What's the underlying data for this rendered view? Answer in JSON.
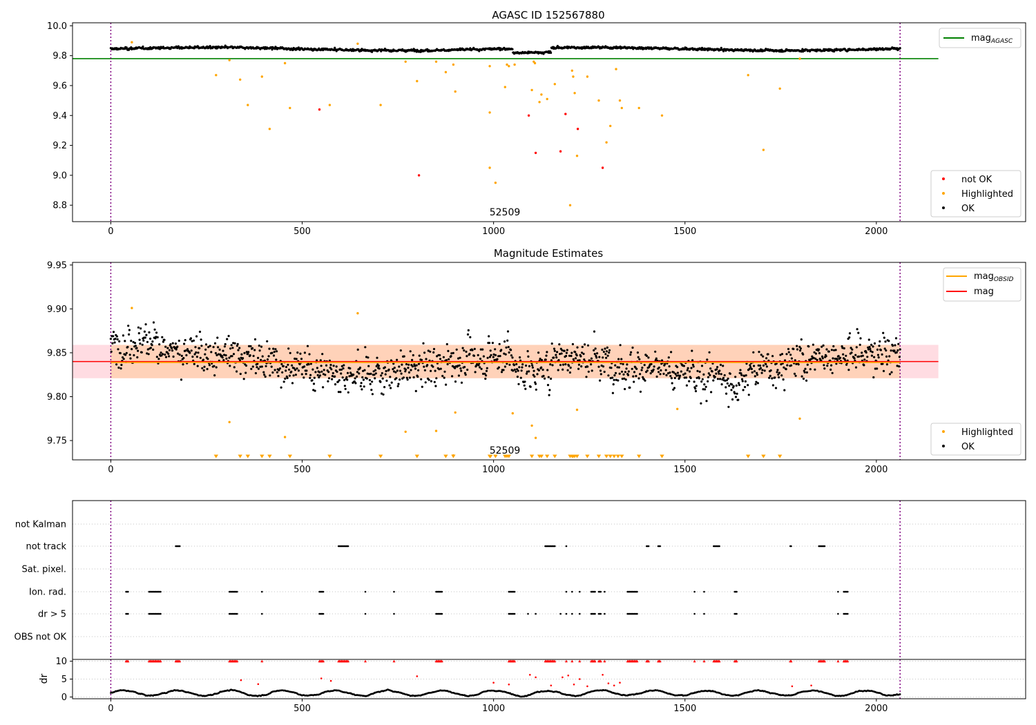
{
  "chart_data": [
    {
      "type": "scatter",
      "title": "AGASC ID 152567880",
      "xlabel": "",
      "ylabel": "",
      "xlim": [
        -100,
        2390
      ],
      "ylim": [
        8.69,
        10.02
      ],
      "xticks": [
        "0",
        "500",
        "1000",
        "1500",
        "2000"
      ],
      "yticks": [
        "8.8",
        "9.0",
        "9.2",
        "9.4",
        "9.6",
        "9.8",
        "10.0"
      ],
      "xtick_values": [
        0,
        500,
        1000,
        1500,
        2000
      ],
      "ytick_values": [
        8.8,
        9.0,
        9.2,
        9.4,
        9.6,
        9.8,
        10.0
      ],
      "vlines": [
        0,
        2062
      ],
      "vline_color": "#800080",
      "annotation": {
        "text": "52509",
        "x": 1030,
        "y": 8.74
      },
      "hline": {
        "name": "mag<sub>AGASC</sub>",
        "label_base": "mag",
        "label_sub": "AGASC",
        "y": 9.78,
        "color": "#008000",
        "x_range": [
          -100,
          2162
        ]
      },
      "legend_line": {
        "base": "mag",
        "sub": "AGASC",
        "position": "upper right"
      },
      "legend_markers": {
        "position": "lower right",
        "entries": [
          {
            "name": "not OK",
            "color": "#ff0000"
          },
          {
            "name": "Highlighted",
            "color": "#ffa500"
          },
          {
            "name": "OK",
            "color": "#000000"
          }
        ]
      },
      "ok_band": {
        "x_range": [
          0,
          2062
        ],
        "center": 9.845,
        "amplitude": 0.018,
        "color": "#000000"
      },
      "series": [
        {
          "name": "Highlighted",
          "color": "#ffa500",
          "points": [
            [
              55,
              9.89
            ],
            [
              275,
              9.67
            ],
            [
              310,
              9.77
            ],
            [
              338,
              9.64
            ],
            [
              358,
              9.47
            ],
            [
              395,
              9.66
            ],
            [
              415,
              9.31
            ],
            [
              455,
              9.75
            ],
            [
              468,
              9.45
            ],
            [
              572,
              9.47
            ],
            [
              645,
              9.88
            ],
            [
              705,
              9.47
            ],
            [
              770,
              9.76
            ],
            [
              800,
              9.63
            ],
            [
              850,
              9.76
            ],
            [
              875,
              9.69
            ],
            [
              895,
              9.74
            ],
            [
              900,
              9.56
            ],
            [
              990,
              9.73
            ],
            [
              990,
              9.42
            ],
            [
              990,
              9.05
            ],
            [
              1005,
              8.95
            ],
            [
              1030,
              9.59
            ],
            [
              1035,
              9.74
            ],
            [
              1040,
              9.73
            ],
            [
              1055,
              9.74
            ],
            [
              1100,
              9.57
            ],
            [
              1105,
              9.76
            ],
            [
              1108,
              9.75
            ],
            [
              1120,
              9.49
            ],
            [
              1125,
              9.54
            ],
            [
              1140,
              9.51
            ],
            [
              1160,
              9.61
            ],
            [
              1200,
              8.8
            ],
            [
              1205,
              9.7
            ],
            [
              1208,
              9.66
            ],
            [
              1212,
              9.55
            ],
            [
              1218,
              9.13
            ],
            [
              1245,
              9.66
            ],
            [
              1275,
              9.5
            ],
            [
              1295,
              9.22
            ],
            [
              1305,
              9.33
            ],
            [
              1320,
              9.71
            ],
            [
              1330,
              9.5
            ],
            [
              1335,
              9.45
            ],
            [
              1380,
              9.45
            ],
            [
              1440,
              9.4
            ],
            [
              1665,
              9.67
            ],
            [
              1705,
              9.17
            ],
            [
              1748,
              9.58
            ],
            [
              1800,
              9.78
            ]
          ]
        },
        {
          "name": "not OK",
          "color": "#ff0000",
          "points": [
            [
              545,
              9.44
            ],
            [
              805,
              9.0
            ],
            [
              1092,
              9.4
            ],
            [
              1110,
              9.15
            ],
            [
              1175,
              9.16
            ],
            [
              1188,
              9.41
            ],
            [
              1220,
              9.31
            ],
            [
              1285,
              9.05
            ]
          ]
        }
      ]
    },
    {
      "type": "scatter",
      "title": "Magnitude Estimates",
      "xlabel": "",
      "ylabel": "",
      "xlim": [
        -100,
        2390
      ],
      "ylim": [
        9.728,
        9.953
      ],
      "xticks": [
        "0",
        "500",
        "1000",
        "1500",
        "2000"
      ],
      "yticks": [
        "9.75",
        "9.80",
        "9.85",
        "9.90",
        "9.95"
      ],
      "xtick_values": [
        0,
        500,
        1000,
        1500,
        2000
      ],
      "ytick_values": [
        9.75,
        9.8,
        9.85,
        9.9,
        9.95
      ],
      "vlines": [
        0,
        2062
      ],
      "annotation": {
        "text": "52509",
        "x": 1030,
        "y": 9.735
      },
      "mag_line": {
        "name": "mag",
        "y": 9.84,
        "color": "#ff0000",
        "band": [
          9.821,
          9.859
        ],
        "band_color": "#ffc0cb",
        "x_range": [
          -100,
          2162
        ]
      },
      "obsid_line": {
        "name": "mag<sub>OBSID</sub>",
        "label_base": "mag",
        "label_sub": "OBSID",
        "y": 9.839,
        "color": "#ffa500",
        "band": [
          9.821,
          9.859
        ],
        "x_range": [
          0,
          2062
        ]
      },
      "legend_lines": {
        "position": "upper right",
        "entries": [
          {
            "base": "mag",
            "sub": "OBSID",
            "color": "#ffa500"
          },
          {
            "base": "mag",
            "sub": "",
            "color": "#ff0000"
          }
        ]
      },
      "legend_markers": {
        "position": "lower right",
        "entries": [
          {
            "name": "Highlighted",
            "color": "#ffa500"
          },
          {
            "name": "OK",
            "color": "#000000"
          }
        ]
      },
      "ok_band": {
        "x_range": [
          0,
          2062
        ],
        "center": 9.838,
        "amplitude": 0.05,
        "color": "#000000"
      },
      "highlighted_points": [
        [
          55,
          9.901
        ],
        [
          310,
          9.771
        ],
        [
          455,
          9.754
        ],
        [
          645,
          9.895
        ],
        [
          770,
          9.76
        ],
        [
          850,
          9.761
        ],
        [
          900,
          9.782
        ],
        [
          1050,
          9.781
        ],
        [
          1100,
          9.767
        ],
        [
          1110,
          9.753
        ],
        [
          1218,
          9.785
        ],
        [
          1480,
          9.786
        ],
        [
          1800,
          9.775
        ],
        [
          895,
          9.733
        ]
      ],
      "below_range_markers": [
        275,
        338,
        358,
        395,
        415,
        468,
        572,
        705,
        800,
        875,
        895,
        990,
        992,
        1005,
        1030,
        1035,
        1040,
        1100,
        1120,
        1125,
        1140,
        1160,
        1200,
        1205,
        1208,
        1212,
        1218,
        1245,
        1275,
        1295,
        1305,
        1315,
        1325,
        1335,
        1380,
        1440,
        1665,
        1705,
        1748
      ]
    },
    {
      "type": "scatter",
      "title": "",
      "xlim": [
        -100,
        2390
      ],
      "categories": [
        "not Kalman",
        "not track",
        "Sat. pixel.",
        "Ion. rad.",
        "dr > 5",
        "OBS not OK"
      ],
      "vlines": [
        0,
        2062
      ],
      "flags": {
        "not Kalman": [],
        "not track": [
          [
            170,
            180
          ],
          [
            595,
            620
          ],
          [
            1135,
            1160
          ],
          [
            1190,
            1192
          ],
          [
            1400,
            1405
          ],
          [
            1430,
            1435
          ],
          [
            1575,
            1590
          ],
          [
            1775,
            1778
          ],
          [
            1850,
            1865
          ]
        ],
        "Sat. pixel.": [],
        "Ion. rad.": [
          [
            40,
            45
          ],
          [
            100,
            130
          ],
          [
            310,
            330
          ],
          [
            395,
            396
          ],
          [
            545,
            555
          ],
          [
            665,
            666
          ],
          [
            740,
            741
          ],
          [
            850,
            865
          ],
          [
            1040,
            1055
          ],
          [
            1190,
            1192
          ],
          [
            1205,
            1206
          ],
          [
            1225,
            1226
          ],
          [
            1255,
            1265
          ],
          [
            1275,
            1280
          ],
          [
            1290,
            1291
          ],
          [
            1350,
            1375
          ],
          [
            1525,
            1526
          ],
          [
            1550,
            1551
          ],
          [
            1630,
            1635
          ],
          [
            1900,
            1901
          ],
          [
            1915,
            1925
          ]
        ],
        "dr > 5": [
          [
            40,
            45
          ],
          [
            100,
            130
          ],
          [
            310,
            330
          ],
          [
            395,
            396
          ],
          [
            545,
            555
          ],
          [
            665,
            666
          ],
          [
            740,
            741
          ],
          [
            850,
            865
          ],
          [
            1040,
            1055
          ],
          [
            1090,
            1091
          ],
          [
            1110,
            1111
          ],
          [
            1175,
            1176
          ],
          [
            1190,
            1192
          ],
          [
            1205,
            1206
          ],
          [
            1225,
            1226
          ],
          [
            1255,
            1265
          ],
          [
            1275,
            1280
          ],
          [
            1290,
            1291
          ],
          [
            1350,
            1375
          ],
          [
            1525,
            1526
          ],
          [
            1550,
            1551
          ],
          [
            1630,
            1635
          ],
          [
            1900,
            1901
          ],
          [
            1915,
            1925
          ]
        ],
        "OBS not OK": []
      }
    },
    {
      "type": "scatter",
      "title": "",
      "xlabel": "",
      "ylabel": "dr",
      "xlim": [
        -100,
        2390
      ],
      "ylim": [
        -0.5,
        10.5
      ],
      "yticks": [
        "0",
        "5",
        "10"
      ],
      "ytick_values": [
        0,
        5,
        10
      ],
      "xticks": [
        "0",
        "500",
        "1000",
        "1500",
        "2000"
      ],
      "xtick_values": [
        0,
        500,
        1000,
        1500,
        2000
      ],
      "vlines": [
        0,
        2062
      ],
      "clipped_at": 10,
      "clipped_color": "#ff0000",
      "ok_color": "#000000",
      "outlier_points": [
        [
          340,
          4.7
        ],
        [
          385,
          3.6
        ],
        [
          550,
          5.2
        ],
        [
          575,
          4.5
        ],
        [
          800,
          5.8
        ],
        [
          1000,
          4.0
        ],
        [
          1040,
          3.5
        ],
        [
          1095,
          6.2
        ],
        [
          1110,
          5.5
        ],
        [
          1150,
          3.2
        ],
        [
          1180,
          5.5
        ],
        [
          1195,
          6.0
        ],
        [
          1210,
          3.5
        ],
        [
          1225,
          5.0
        ],
        [
          1245,
          3.0
        ],
        [
          1285,
          6.2
        ],
        [
          1300,
          3.8
        ],
        [
          1315,
          3.2
        ],
        [
          1330,
          4.0
        ],
        [
          1780,
          3.0
        ],
        [
          1830,
          3.2
        ]
      ],
      "clipped_ranges": [
        [
          40,
          45
        ],
        [
          100,
          130
        ],
        [
          170,
          180
        ],
        [
          310,
          330
        ],
        [
          395,
          396
        ],
        [
          545,
          555
        ],
        [
          595,
          620
        ],
        [
          665,
          666
        ],
        [
          740,
          741
        ],
        [
          850,
          865
        ],
        [
          1040,
          1055
        ],
        [
          1135,
          1160
        ],
        [
          1190,
          1192
        ],
        [
          1205,
          1206
        ],
        [
          1225,
          1226
        ],
        [
          1255,
          1265
        ],
        [
          1275,
          1280
        ],
        [
          1290,
          1291
        ],
        [
          1350,
          1375
        ],
        [
          1400,
          1405
        ],
        [
          1430,
          1435
        ],
        [
          1525,
          1526
        ],
        [
          1550,
          1551
        ],
        [
          1575,
          1590
        ],
        [
          1630,
          1635
        ],
        [
          1775,
          1778
        ],
        [
          1850,
          1865
        ],
        [
          1900,
          1901
        ],
        [
          1915,
          1925
        ]
      ]
    }
  ]
}
